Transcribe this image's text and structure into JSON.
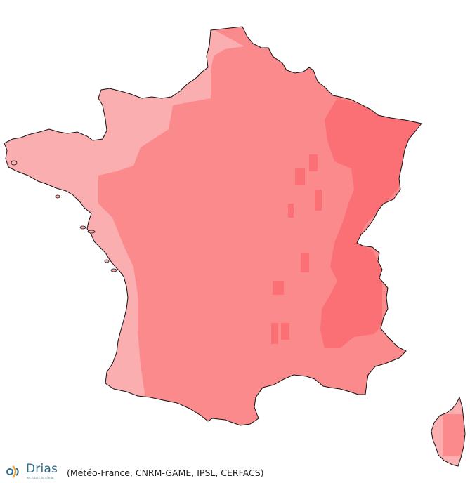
{
  "map": {
    "colors": {
      "light": "#fbaeb0",
      "medium": "#fb8a8c",
      "strong": "#fa7074",
      "border": "#111111"
    },
    "legend_classes": [
      "light",
      "medium",
      "strong"
    ]
  },
  "footer": {
    "logo_text": "Drias",
    "logo_tagline": "les futurs du climat",
    "credits": "(Météo-France, CNRM-GAME, IPSL, CERFACS)"
  }
}
